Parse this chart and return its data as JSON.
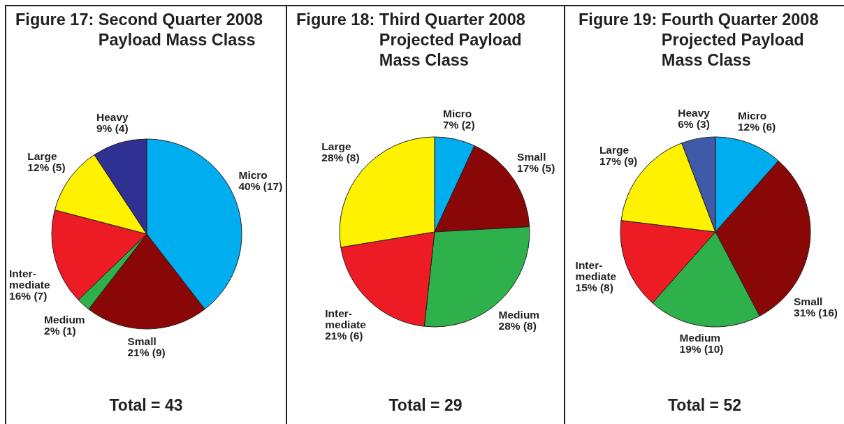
{
  "chart_data": [
    {
      "type": "pie",
      "title": "Figure 17: Second Quarter 2008\nPayload Mass Class",
      "categories": [
        "Micro",
        "Small",
        "Medium",
        "Inter-\nmediate",
        "Large",
        "Heavy"
      ],
      "values": [
        17,
        9,
        1,
        7,
        5,
        4
      ],
      "value_labels": [
        "40% (17)",
        "21% (9)",
        "2% (1)",
        "16% (7)",
        "12% (5)",
        "9% (4)"
      ],
      "colors": [
        "#00aeef",
        "#8a0707",
        "#2eb04b",
        "#ed1c24",
        "#fff200",
        "#2e3192"
      ],
      "annotations": [
        "Total = 43"
      ]
    },
    {
      "type": "pie",
      "title": "Figure 18: Third Quarter 2008\nProjected Payload\nMass Class",
      "categories": [
        "Micro",
        "Small",
        "Medium",
        "Inter-\nmediate",
        "Large"
      ],
      "values": [
        2,
        5,
        8,
        6,
        8
      ],
      "value_labels": [
        "7% (2)",
        "17% (5)",
        "28% (8)",
        "21% (6)",
        "28% (8)"
      ],
      "colors": [
        "#00aeef",
        "#8a0707",
        "#2eb04b",
        "#ed1c24",
        "#fff200"
      ],
      "annotations": [
        "Total = 29"
      ]
    },
    {
      "type": "pie",
      "title": "Figure 19: Fourth Quarter 2008\nProjected Payload\nMass Class",
      "categories": [
        "Micro",
        "Small",
        "Medium",
        "Inter-\nmediate",
        "Large",
        "Heavy"
      ],
      "values": [
        6,
        16,
        10,
        8,
        9,
        3
      ],
      "value_labels": [
        "12% (6)",
        "31% (16)",
        "19% (10)",
        "15% (8)",
        "17% (9)",
        "6% (3)"
      ],
      "colors": [
        "#00aeef",
        "#8a0707",
        "#2eb04b",
        "#ed1c24",
        "#fff200",
        "#3f5aa8"
      ],
      "annotations": [
        "Total = 52"
      ]
    }
  ]
}
